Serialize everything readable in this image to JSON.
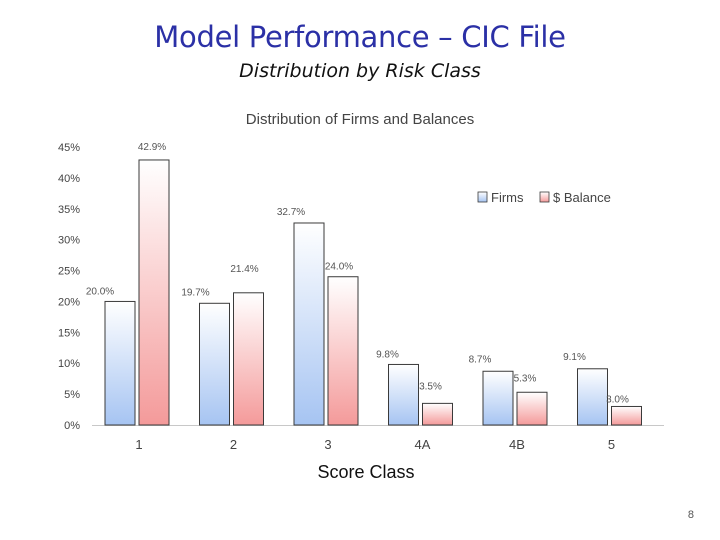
{
  "slide": {
    "title": "Model Performance – CIC File",
    "subtitle": "Distribution by Risk Class",
    "page_number": "8"
  },
  "chart_data": {
    "type": "bar",
    "title": "Distribution of Firms and Balances",
    "xlabel": "Score Class",
    "ylabel": "",
    "categories": [
      "1",
      "2",
      "3",
      "4A",
      "4B",
      "5"
    ],
    "series": [
      {
        "name": "Firms",
        "values": [
          20.0,
          19.7,
          32.7,
          9.8,
          8.7,
          9.1
        ],
        "labels": [
          "20.0%",
          "19.7%",
          "32.7%",
          "9.8%",
          "8.7%",
          "9.1%"
        ],
        "color_top": "#ffffff",
        "color_bottom": "#a6c4f2",
        "stroke": "#3a3a3a"
      },
      {
        "name": "$ Balance",
        "values": [
          42.9,
          21.4,
          24.0,
          3.5,
          5.3,
          3.0
        ],
        "labels": [
          "42.9%",
          "21.4%",
          "24.0%",
          "3.5%",
          "5.3%",
          "3.0%"
        ],
        "color_top": "#ffffff",
        "color_bottom": "#f49a9a",
        "stroke": "#3a3a3a"
      }
    ],
    "y_ticks": [
      0,
      5,
      10,
      15,
      20,
      25,
      30,
      35,
      40,
      45
    ],
    "y_tick_labels": [
      "0%",
      "5%",
      "10%",
      "15%",
      "20%",
      "25%",
      "30%",
      "35%",
      "40%",
      "45%"
    ],
    "ylim": [
      0,
      45
    ],
    "grid": false,
    "legend_position": "top-right"
  }
}
